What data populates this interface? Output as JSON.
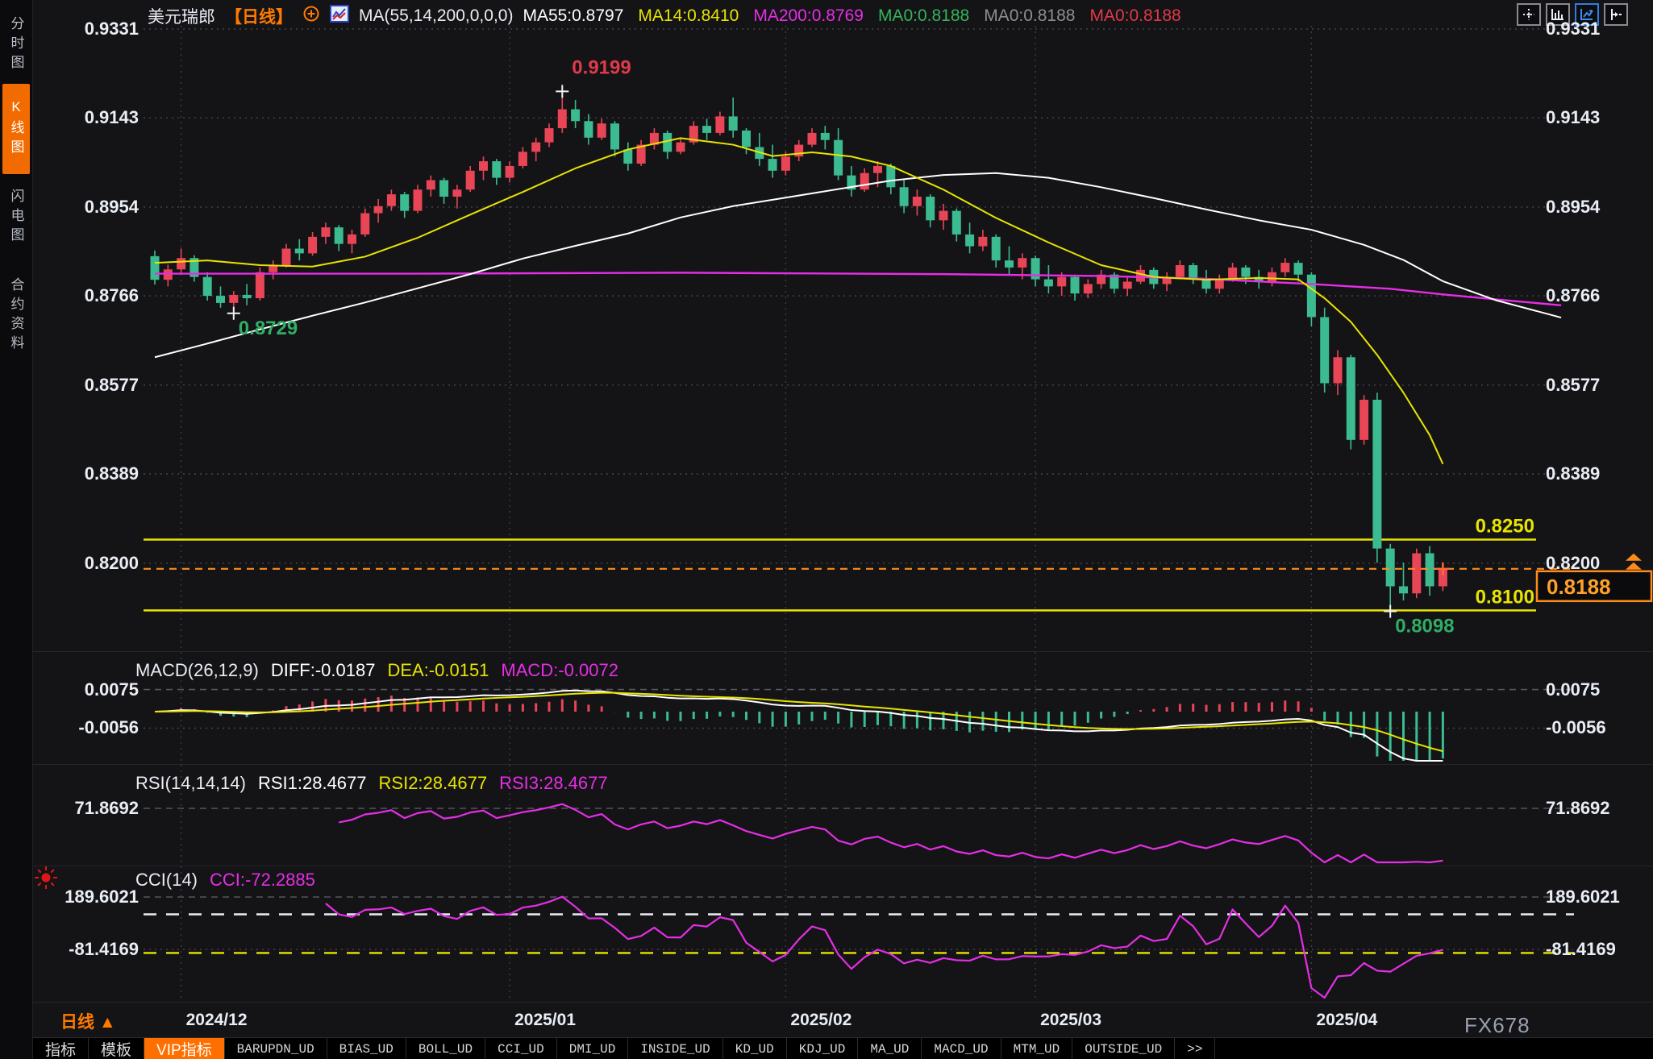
{
  "header": {
    "symbol": "美元瑞郎",
    "period_tag": "【日线】",
    "ma_settings": "MA(55,14,200,0,0,0)",
    "ma_values": [
      {
        "label": "MA55:0.8797",
        "color": "#ffffff"
      },
      {
        "label": "MA14:0.8410",
        "color": "#e8e400"
      },
      {
        "label": "MA200:0.8769",
        "color": "#e52ee5"
      },
      {
        "label": "MA0:0.8188",
        "color": "#33b559"
      },
      {
        "label": "MA0:0.8188",
        "color": "#8d8d95"
      },
      {
        "label": "MA0:0.8188",
        "color": "#e0394a"
      }
    ]
  },
  "sidebar": {
    "tabs": [
      {
        "label": "分时图",
        "active": false
      },
      {
        "label": "K线图",
        "active": true
      },
      {
        "label": "闪电图",
        "active": false
      },
      {
        "label": "合约资料",
        "active": false
      }
    ]
  },
  "top_icons": [
    "pan-crosshair-icon",
    "bar-chart-icon",
    "line-chart-icon",
    "panel-switch-icon"
  ],
  "macd_panel": {
    "title": "MACD(26,12,9)",
    "items": [
      {
        "label": "DIFF:-0.0187",
        "color": "#ffffff"
      },
      {
        "label": "DEA:-0.0151",
        "color": "#e8e400"
      },
      {
        "label": "MACD:-0.0072",
        "color": "#e52ee5"
      }
    ],
    "axis_labels": [
      "0.0075",
      "-0.0056"
    ]
  },
  "rsi_panel": {
    "title": "RSI(14,14,14)",
    "items": [
      {
        "label": "RSI1:28.4677",
        "color": "#ffffff"
      },
      {
        "label": "RSI2:28.4677",
        "color": "#e8e400"
      },
      {
        "label": "RSI3:28.4677",
        "color": "#e52ee5"
      }
    ],
    "axis_labels": [
      "71.8692"
    ]
  },
  "cci_panel": {
    "title": "CCI(14)",
    "items": [
      {
        "label": "CCI:-72.2885",
        "color": "#e52ee5"
      }
    ],
    "axis_labels": [
      "189.6021",
      "-81.4169"
    ]
  },
  "bottom": {
    "period_label": "日线",
    "period_arrow": "▲",
    "watermark": "FX678",
    "menu": [
      {
        "label": "指标",
        "style": "tab"
      },
      {
        "label": "模板",
        "style": "tab"
      },
      {
        "label": "VIP指标",
        "style": "active"
      },
      {
        "label": "BARUPDN_UD",
        "style": "mono"
      },
      {
        "label": "BIAS_UD",
        "style": "mono"
      },
      {
        "label": "BOLL_UD",
        "style": "mono"
      },
      {
        "label": "CCI_UD",
        "style": "mono"
      },
      {
        "label": "DMI_UD",
        "style": "mono"
      },
      {
        "label": "INSIDE_UD",
        "style": "mono"
      },
      {
        "label": "KD_UD",
        "style": "mono"
      },
      {
        "label": "KDJ_UD",
        "style": "mono"
      },
      {
        "label": "MA_UD",
        "style": "mono"
      },
      {
        "label": "MACD_UD",
        "style": "mono"
      },
      {
        "label": "MTM_UD",
        "style": "mono"
      },
      {
        "label": "OUTSIDE_UD",
        "style": "mono"
      },
      {
        "label": ">>",
        "style": "mono"
      }
    ]
  },
  "price_marker": {
    "label": "0.8188",
    "value": 0.8188,
    "color": "#ff8c1a"
  },
  "chart_data": {
    "type": "candlestick",
    "title": "美元瑞郎 日线 (USD/CHF daily)",
    "colors": {
      "up": "#e84556",
      "down": "#3bbb8f",
      "ma14": "#e8e400",
      "ma55": "#ffffff",
      "ma200": "#e52ee5"
    },
    "y_axis": {
      "tick_labels": [
        "0.9331",
        "0.9143",
        "0.8954",
        "0.8766",
        "0.8577",
        "0.8389",
        "0.8200"
      ]
    },
    "x_axis": {
      "labels": [
        {
          "label": "2024/12",
          "index": 2
        },
        {
          "label": "2025/01",
          "index": 27
        },
        {
          "label": "2025/02",
          "index": 48
        },
        {
          "label": "2025/03",
          "index": 67
        },
        {
          "label": "2025/04",
          "index": 88
        }
      ]
    },
    "horizontal_lines": [
      {
        "label": "0.8250",
        "value": 0.825,
        "color": "#e8e400"
      },
      {
        "label": "0.8100",
        "value": 0.81,
        "color": "#e8e400"
      }
    ],
    "annotations": [
      {
        "kind": "swing-high",
        "label": "0.9199",
        "index": 31,
        "price": 0.9199,
        "color": "#e0394a"
      },
      {
        "kind": "swing-low",
        "label": "0.8729",
        "index": 6,
        "price": 0.8729,
        "color": "#2fae64"
      },
      {
        "kind": "swing-low",
        "label": "0.8098",
        "index": 94,
        "price": 0.8098,
        "color": "#2fae64"
      }
    ],
    "candles": [
      [
        0.885,
        0.8862,
        0.879,
        0.88
      ],
      [
        0.88,
        0.8832,
        0.8786,
        0.8822
      ],
      [
        0.8822,
        0.8866,
        0.8812,
        0.8846
      ],
      [
        0.8846,
        0.8852,
        0.8796,
        0.8806
      ],
      [
        0.8806,
        0.8816,
        0.8756,
        0.8766
      ],
      [
        0.8766,
        0.8786,
        0.8741,
        0.8751
      ],
      [
        0.8751,
        0.8776,
        0.8729,
        0.8768
      ],
      [
        0.8768,
        0.8791,
        0.8746,
        0.8761
      ],
      [
        0.8761,
        0.8826,
        0.8756,
        0.8816
      ],
      [
        0.8816,
        0.8841,
        0.8801,
        0.8831
      ],
      [
        0.8831,
        0.8876,
        0.8826,
        0.8866
      ],
      [
        0.8866,
        0.8886,
        0.8841,
        0.8856
      ],
      [
        0.8856,
        0.8901,
        0.8851,
        0.8891
      ],
      [
        0.8891,
        0.8921,
        0.8876,
        0.8911
      ],
      [
        0.8911,
        0.8916,
        0.8861,
        0.8876
      ],
      [
        0.8876,
        0.8906,
        0.8856,
        0.8896
      ],
      [
        0.8896,
        0.8951,
        0.8891,
        0.8941
      ],
      [
        0.8941,
        0.8971,
        0.8921,
        0.8956
      ],
      [
        0.8956,
        0.8991,
        0.8946,
        0.8981
      ],
      [
        0.8981,
        0.8986,
        0.8931,
        0.8946
      ],
      [
        0.8946,
        0.9001,
        0.8941,
        0.8991
      ],
      [
        0.8991,
        0.9021,
        0.8976,
        0.9011
      ],
      [
        0.9011,
        0.9016,
        0.8961,
        0.8976
      ],
      [
        0.8976,
        0.9001,
        0.8951,
        0.8991
      ],
      [
        0.8991,
        0.9041,
        0.8986,
        0.9031
      ],
      [
        0.9031,
        0.9061,
        0.9011,
        0.9051
      ],
      [
        0.9051,
        0.9056,
        0.9001,
        0.9016
      ],
      [
        0.9016,
        0.9051,
        0.9006,
        0.9041
      ],
      [
        0.9041,
        0.9081,
        0.9036,
        0.9071
      ],
      [
        0.9071,
        0.9101,
        0.9051,
        0.9091
      ],
      [
        0.9091,
        0.9131,
        0.9081,
        0.9121
      ],
      [
        0.9121,
        0.9199,
        0.9111,
        0.9161
      ],
      [
        0.9161,
        0.9181,
        0.9121,
        0.9136
      ],
      [
        0.9136,
        0.9151,
        0.9086,
        0.9101
      ],
      [
        0.9101,
        0.9141,
        0.9096,
        0.9131
      ],
      [
        0.9131,
        0.9136,
        0.9061,
        0.9076
      ],
      [
        0.9076,
        0.9091,
        0.9031,
        0.9046
      ],
      [
        0.9046,
        0.9096,
        0.9041,
        0.9086
      ],
      [
        0.9086,
        0.9121,
        0.9076,
        0.9111
      ],
      [
        0.9111,
        0.9116,
        0.9056,
        0.9071
      ],
      [
        0.9071,
        0.9101,
        0.9066,
        0.9091
      ],
      [
        0.9091,
        0.9136,
        0.9086,
        0.9126
      ],
      [
        0.9126,
        0.9141,
        0.9096,
        0.9111
      ],
      [
        0.9111,
        0.9156,
        0.9106,
        0.9146
      ],
      [
        0.9146,
        0.9186,
        0.9101,
        0.9116
      ],
      [
        0.9116,
        0.9121,
        0.9066,
        0.9081
      ],
      [
        0.9081,
        0.9111,
        0.9041,
        0.9056
      ],
      [
        0.9056,
        0.9086,
        0.9016,
        0.9031
      ],
      [
        0.9031,
        0.9071,
        0.9021,
        0.9061
      ],
      [
        0.9061,
        0.9096,
        0.9051,
        0.9086
      ],
      [
        0.9086,
        0.9121,
        0.9081,
        0.9111
      ],
      [
        0.9111,
        0.9126,
        0.9076,
        0.9096
      ],
      [
        0.9096,
        0.9121,
        0.9011,
        0.9021
      ],
      [
        0.9021,
        0.9041,
        0.8976,
        0.8991
      ],
      [
        0.8991,
        0.9036,
        0.8986,
        0.9026
      ],
      [
        0.9026,
        0.9051,
        0.8996,
        0.9041
      ],
      [
        0.9041,
        0.9046,
        0.8981,
        0.8996
      ],
      [
        0.8996,
        0.9011,
        0.8941,
        0.8956
      ],
      [
        0.8956,
        0.8991,
        0.8936,
        0.8976
      ],
      [
        0.8976,
        0.8981,
        0.8911,
        0.8926
      ],
      [
        0.8926,
        0.8961,
        0.8906,
        0.8946
      ],
      [
        0.8946,
        0.8951,
        0.8881,
        0.8896
      ],
      [
        0.8896,
        0.8921,
        0.8856,
        0.8871
      ],
      [
        0.8871,
        0.8906,
        0.8861,
        0.8891
      ],
      [
        0.8891,
        0.8896,
        0.8826,
        0.8841
      ],
      [
        0.8841,
        0.8871,
        0.8811,
        0.8826
      ],
      [
        0.8826,
        0.8856,
        0.8801,
        0.8846
      ],
      [
        0.8846,
        0.8851,
        0.8786,
        0.8801
      ],
      [
        0.8801,
        0.8831,
        0.8771,
        0.8786
      ],
      [
        0.8786,
        0.8816,
        0.8766,
        0.8806
      ],
      [
        0.8806,
        0.8811,
        0.8756,
        0.8771
      ],
      [
        0.8771,
        0.8801,
        0.8761,
        0.8791
      ],
      [
        0.8791,
        0.8821,
        0.8781,
        0.8811
      ],
      [
        0.8811,
        0.8816,
        0.8771,
        0.8781
      ],
      [
        0.8781,
        0.8806,
        0.8766,
        0.8796
      ],
      [
        0.8796,
        0.8831,
        0.8791,
        0.8821
      ],
      [
        0.8821,
        0.8826,
        0.8781,
        0.8791
      ],
      [
        0.8791,
        0.8816,
        0.8776,
        0.8806
      ],
      [
        0.8806,
        0.8841,
        0.8801,
        0.8831
      ],
      [
        0.8831,
        0.8836,
        0.8791,
        0.8801
      ],
      [
        0.8801,
        0.8821,
        0.8771,
        0.8781
      ],
      [
        0.8781,
        0.8811,
        0.8771,
        0.8801
      ],
      [
        0.8801,
        0.8836,
        0.8796,
        0.8826
      ],
      [
        0.8826,
        0.8831,
        0.8791,
        0.8806
      ],
      [
        0.8806,
        0.8821,
        0.8781,
        0.8796
      ],
      [
        0.8796,
        0.8826,
        0.8786,
        0.8816
      ],
      [
        0.8816,
        0.8846,
        0.8806,
        0.8836
      ],
      [
        0.8836,
        0.8841,
        0.8796,
        0.8811
      ],
      [
        0.8811,
        0.8816,
        0.8701,
        0.8721
      ],
      [
        0.8721,
        0.8741,
        0.8561,
        0.8581
      ],
      [
        0.8581,
        0.8651,
        0.8556,
        0.8636
      ],
      [
        0.8636,
        0.8641,
        0.8441,
        0.8461
      ],
      [
        0.8461,
        0.8556,
        0.8451,
        0.8546
      ],
      [
        0.8546,
        0.8561,
        0.8201,
        0.8231
      ],
      [
        0.8231,
        0.8241,
        0.8098,
        0.8151
      ],
      [
        0.8151,
        0.8201,
        0.8121,
        0.8136
      ],
      [
        0.8136,
        0.8231,
        0.8126,
        0.8221
      ],
      [
        0.8221,
        0.8236,
        0.8131,
        0.8151
      ],
      [
        0.8151,
        0.8201,
        0.8141,
        0.8188
      ]
    ],
    "ma_lines": [
      {
        "name": "MA200",
        "color": "#e52ee5",
        "points": [
          [
            0,
            0.8813
          ],
          [
            20,
            0.8813
          ],
          [
            40,
            0.8815
          ],
          [
            60,
            0.8812
          ],
          [
            72,
            0.8808
          ],
          [
            80,
            0.8802
          ],
          [
            88,
            0.8791
          ],
          [
            94,
            0.8781
          ],
          [
            98,
            0.8769
          ],
          [
            103,
            0.8756
          ],
          [
            107,
            0.8746
          ]
        ]
      },
      {
        "name": "MA55",
        "color": "#ffffff",
        "points": [
          [
            0,
            0.8636
          ],
          [
            4,
            0.8665
          ],
          [
            8,
            0.8695
          ],
          [
            12,
            0.8724
          ],
          [
            16,
            0.8752
          ],
          [
            20,
            0.8782
          ],
          [
            24,
            0.8812
          ],
          [
            28,
            0.8845
          ],
          [
            32,
            0.8872
          ],
          [
            36,
            0.8898
          ],
          [
            40,
            0.8932
          ],
          [
            44,
            0.8956
          ],
          [
            48,
            0.8974
          ],
          [
            52,
            0.8992
          ],
          [
            56,
            0.901
          ],
          [
            60,
            0.9022
          ],
          [
            64,
            0.9026
          ],
          [
            68,
            0.9016
          ],
          [
            72,
            0.8996
          ],
          [
            76,
            0.8973
          ],
          [
            80,
            0.8949
          ],
          [
            84,
            0.8926
          ],
          [
            88,
            0.8906
          ],
          [
            92,
            0.8874
          ],
          [
            95,
            0.8842
          ],
          [
            98,
            0.8797
          ],
          [
            102,
            0.8757
          ],
          [
            107,
            0.872
          ]
        ]
      },
      {
        "name": "MA14",
        "color": "#e8e400",
        "points": [
          [
            0,
            0.8836
          ],
          [
            4,
            0.8841
          ],
          [
            8,
            0.8831
          ],
          [
            12,
            0.8828
          ],
          [
            16,
            0.8849
          ],
          [
            20,
            0.8889
          ],
          [
            24,
            0.8938
          ],
          [
            28,
            0.8986
          ],
          [
            32,
            0.9036
          ],
          [
            36,
            0.9076
          ],
          [
            40,
            0.91
          ],
          [
            44,
            0.9086
          ],
          [
            47,
            0.9062
          ],
          [
            50,
            0.907
          ],
          [
            53,
            0.9061
          ],
          [
            56,
            0.9041
          ],
          [
            60,
            0.8991
          ],
          [
            64,
            0.8931
          ],
          [
            68,
            0.8879
          ],
          [
            72,
            0.8831
          ],
          [
            76,
            0.8806
          ],
          [
            80,
            0.88
          ],
          [
            84,
            0.8804
          ],
          [
            87,
            0.8801
          ],
          [
            89,
            0.8761
          ],
          [
            91,
            0.8711
          ],
          [
            93,
            0.8641
          ],
          [
            95,
            0.8561
          ],
          [
            97,
            0.8471
          ],
          [
            98,
            0.841
          ]
        ]
      }
    ],
    "indicators": {
      "macd": {
        "diff": -0.0187,
        "dea": -0.0151,
        "macd": -0.0072
      },
      "rsi": {
        "rsi1": 28.4677,
        "rsi2": 28.4677,
        "rsi3": 28.4677
      },
      "cci": {
        "cci": -72.2885,
        "upper_band": 100,
        "lower_band": -100
      }
    }
  }
}
